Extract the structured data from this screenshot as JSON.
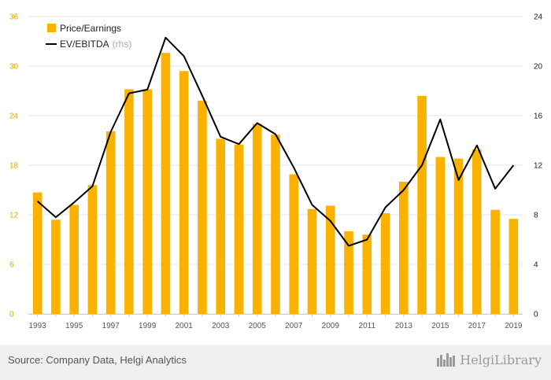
{
  "chart_data": {
    "type": "bar",
    "categories": [
      "1993",
      "1994",
      "1995",
      "1996",
      "1997",
      "1998",
      "1999",
      "2000",
      "2001",
      "2002",
      "2003",
      "2004",
      "2005",
      "2006",
      "2007",
      "2008",
      "2009",
      "2010",
      "2011",
      "2012",
      "2013",
      "2014",
      "2015",
      "2016",
      "2017",
      "2018",
      "2019"
    ],
    "x_tick_labels": [
      "1993",
      "1995",
      "1997",
      "1999",
      "2001",
      "2003",
      "2005",
      "2007",
      "2009",
      "2011",
      "2013",
      "2015",
      "2017",
      "2019"
    ],
    "series": [
      {
        "name": "Price/Earnings",
        "type": "bar",
        "axis": "left",
        "color": "#f9b200",
        "values": [
          14.7,
          11.4,
          13.2,
          15.6,
          22.1,
          27.2,
          27.2,
          31.6,
          29.4,
          25.8,
          21.2,
          20.5,
          23.0,
          21.7,
          16.9,
          12.7,
          13.1,
          10.0,
          9.6,
          12.2,
          16.0,
          26.4,
          19.0,
          18.8,
          19.9,
          12.6,
          11.5
        ]
      },
      {
        "name": "EV/EBITDA",
        "name_suffix": "(rhs)",
        "type": "line",
        "axis": "right",
        "color": "#000000",
        "values": [
          9.1,
          7.8,
          9.0,
          10.3,
          14.7,
          17.8,
          18.1,
          22.3,
          20.8,
          17.6,
          14.3,
          13.7,
          15.4,
          14.5,
          11.8,
          8.8,
          7.5,
          5.5,
          6.0,
          8.6,
          10.0,
          12.0,
          15.7,
          10.8,
          13.6,
          10.1,
          12.0
        ]
      }
    ],
    "y_left": {
      "min": 0,
      "max": 36,
      "ticks": [
        "0",
        "6",
        "12",
        "18",
        "24",
        "30",
        "36"
      ]
    },
    "y_right": {
      "min": 0,
      "max": 24,
      "ticks": [
        "0",
        "4",
        "8",
        "12",
        "16",
        "20",
        "24"
      ]
    },
    "grid": "horizontal",
    "legend_position": "top-left"
  },
  "footer": {
    "source": "Source: Company Data, Helgi Analytics",
    "logo_text": "HelgiLibrary"
  }
}
